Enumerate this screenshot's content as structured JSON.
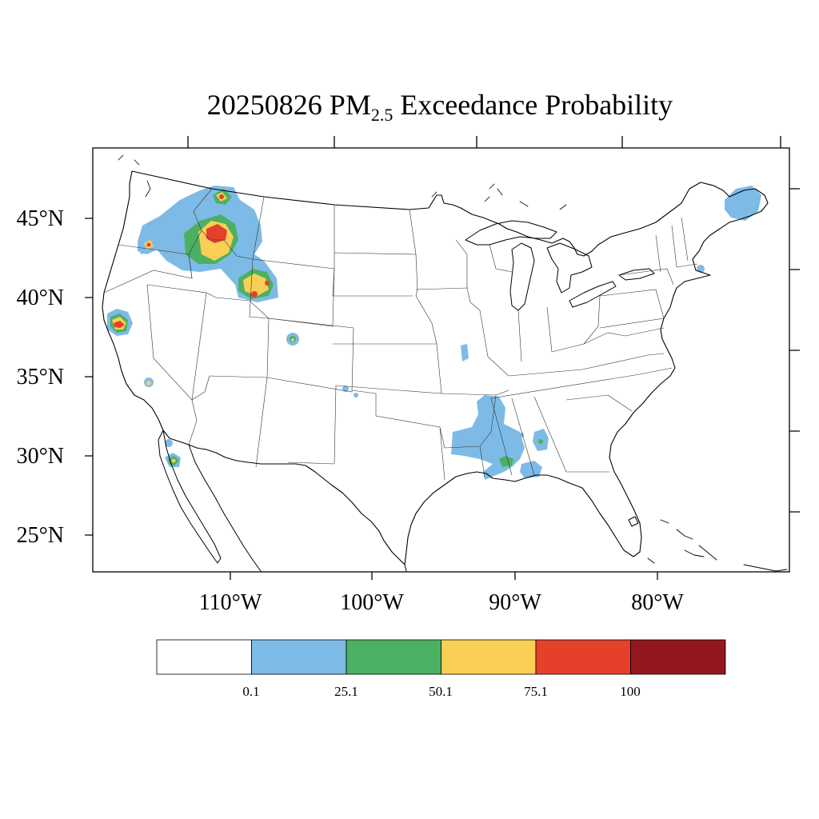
{
  "title": {
    "date": "20250826",
    "pollutant": "PM",
    "pollutant_sub": "2.5",
    "rest": "Exceedance Probability"
  },
  "lat_ticks": [
    "45°N",
    "40°N",
    "35°N",
    "30°N",
    "25°N"
  ],
  "lon_ticks": [
    "110°W",
    "100°W",
    "90°W",
    "80°W"
  ],
  "colorbar": {
    "colors": [
      "#ffffff",
      "#7dbbe6",
      "#4cb062",
      "#f9cf55",
      "#e5402a",
      "#93181d"
    ],
    "labels": [
      "0.1",
      "25.1",
      "50.1",
      "75.1",
      "100"
    ]
  }
}
